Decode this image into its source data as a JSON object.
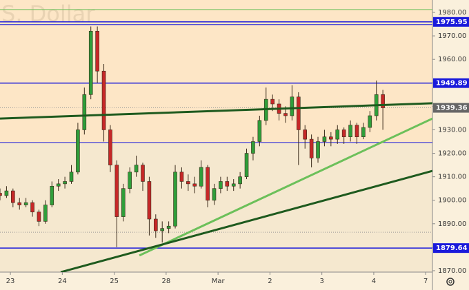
{
  "chart_data": {
    "type": "candlestick",
    "watermark": "S. Dollar",
    "x": [
      -0.2,
      -0.075,
      0.05,
      0.175,
      0.3,
      0.425,
      0.55,
      0.675,
      0.8,
      0.925,
      1.05,
      1.175,
      1.3,
      1.425,
      1.55,
      1.675,
      1.8,
      1.925,
      2.05,
      2.175,
      2.3,
      2.425,
      2.55,
      2.675,
      2.8,
      2.925,
      3.05,
      3.175,
      3.3,
      3.425,
      3.55,
      3.675,
      3.8,
      3.925,
      4.05,
      4.175,
      4.3,
      4.425,
      4.55,
      4.675,
      4.8,
      4.925,
      5.05,
      5.175,
      5.3,
      5.425,
      5.55,
      5.675,
      5.8,
      5.925,
      6.05,
      6.175,
      6.3,
      6.425,
      6.55,
      6.675,
      6.8,
      6.925,
      7.05,
      7.175
    ],
    "open": [
      1903,
      1902,
      1904,
      1899,
      1898,
      1899,
      1895,
      1891,
      1898,
      1906,
      1907,
      1908,
      1912,
      1930,
      1945,
      1972,
      1955,
      1930,
      1915,
      1893,
      1905,
      1912,
      1915,
      1908,
      1892,
      1887,
      1888,
      1889,
      1912,
      1908,
      1907,
      1906,
      1914,
      1900,
      1905,
      1908,
      1906,
      1907,
      1910,
      1920,
      1925,
      1934,
      1943,
      1941,
      1937,
      1936,
      1944,
      1930,
      1926,
      1918,
      1925,
      1927,
      1926,
      1930,
      1927,
      1932,
      1927,
      1931,
      1936,
      1945
    ],
    "high": [
      1905,
      1906,
      1905,
      1901,
      1901,
      1900,
      1896,
      1900,
      1908,
      1909,
      1910,
      1915,
      1933,
      1948,
      1974,
      1974,
      1958,
      1932,
      1917,
      1907,
      1914,
      1919,
      1916,
      1910,
      1894,
      1891,
      1891,
      1915,
      1914,
      1911,
      1910,
      1917,
      1915,
      1907,
      1910,
      1910,
      1909,
      1912,
      1922,
      1927,
      1936,
      1948,
      1945,
      1943,
      1940,
      1949,
      1946,
      1932,
      1928,
      1927,
      1930,
      1929,
      1932,
      1931,
      1934,
      1933,
      1933,
      1938,
      1951,
      1947
    ],
    "low": [
      1900,
      1901,
      1897,
      1896,
      1897,
      1893,
      1889,
      1890,
      1897,
      1904,
      1905,
      1907,
      1911,
      1928,
      1943,
      1950,
      1925,
      1912,
      1880,
      1891,
      1903,
      1910,
      1904,
      1885,
      1884,
      1882,
      1886,
      1888,
      1905,
      1904,
      1903,
      1905,
      1897,
      1898,
      1903,
      1904,
      1904,
      1905,
      1909,
      1917,
      1923,
      1932,
      1938,
      1934,
      1933,
      1934,
      1915,
      1922,
      1914,
      1916,
      1923,
      1923,
      1924,
      1924,
      1925,
      1924,
      1926,
      1929,
      1934,
      1930
    ],
    "close": [
      1902,
      1904,
      1899,
      1898,
      1899,
      1895,
      1891,
      1898,
      1906,
      1907,
      1908,
      1912,
      1930,
      1945,
      1972,
      1955,
      1930,
      1915,
      1893,
      1905,
      1912,
      1915,
      1908,
      1892,
      1887,
      1888,
      1889,
      1912,
      1908,
      1907,
      1906,
      1914,
      1900,
      1905,
      1908,
      1906,
      1907,
      1910,
      1920,
      1925,
      1934,
      1943,
      1941,
      1937,
      1936,
      1944,
      1930,
      1926,
      1918,
      1925,
      1927,
      1926,
      1930,
      1927,
      1932,
      1927,
      1931,
      1936,
      1945,
      1939.36
    ],
    "up_color": "#2f9e3a",
    "down_color": "#c62828",
    "xlim": [
      -0.2,
      8.13
    ],
    "ylim": [
      1870,
      1980
    ],
    "xticks": [
      {
        "value": 0,
        "label": "23"
      },
      {
        "value": 1,
        "label": "24"
      },
      {
        "value": 2,
        "label": "25"
      },
      {
        "value": 3,
        "label": "28"
      },
      {
        "value": 4,
        "label": "Mar"
      },
      {
        "value": 5,
        "label": "2"
      },
      {
        "value": 6,
        "label": "3"
      },
      {
        "value": 7,
        "label": "4"
      },
      {
        "value": 8,
        "label": "7"
      }
    ],
    "yticks": [
      {
        "value": 1870,
        "label": "1870.00"
      },
      {
        "value": 1880,
        "label": "1880.00"
      },
      {
        "value": 1890,
        "label": "1890.00"
      },
      {
        "value": 1900,
        "label": "1900.00"
      },
      {
        "value": 1910,
        "label": "1910.00"
      },
      {
        "value": 1920,
        "label": "1920.00"
      },
      {
        "value": 1930,
        "label": "1930.00"
      },
      {
        "value": 1940,
        "label": "1940.00"
      },
      {
        "value": 1950,
        "label": "1950.00"
      },
      {
        "value": 1960,
        "label": "1960.00"
      },
      {
        "value": 1970,
        "label": "1970.00"
      },
      {
        "value": 1980,
        "label": "1980.00"
      }
    ],
    "levels": [
      1975.95,
      1949.89,
      1879.64
    ],
    "level_color": "#1a1adb",
    "minor_levels": [
      1981.2,
      1974.8,
      1924.6
    ],
    "last_price": 1939.36,
    "dotted_levels": [
      1939.36,
      1886.4
    ],
    "trendlines": [
      {
        "x": [
          -0.2,
          8.13
        ],
        "y": [
          1934.8,
          1941.3
        ],
        "color": "#1e5a1e",
        "width": 3
      },
      {
        "x": [
          2.485,
          8.13
        ],
        "y": [
          1876.5,
          1934.8
        ],
        "color": "#6cc05a",
        "width": 3
      },
      {
        "x": [
          0.97,
          8.13
        ],
        "y": [
          1869.4,
          1912.5
        ],
        "color": "#1e5a1e",
        "width": 3
      }
    ]
  }
}
